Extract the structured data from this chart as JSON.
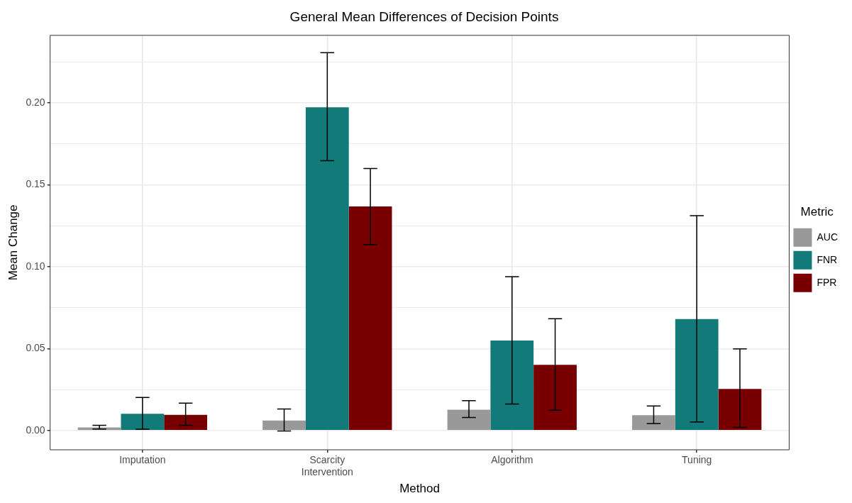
{
  "chart_data": {
    "type": "bar",
    "title": "General Mean Differences of Decision Points",
    "xlabel": "Method",
    "ylabel": "Mean Change",
    "legend_title": "Metric",
    "categories": [
      "Imputation",
      "Scarcity\nIntervention",
      "Algorithm",
      "Tuning"
    ],
    "series": [
      {
        "name": "AUC",
        "color": "#999999",
        "values": [
          0.0019,
          0.0061,
          0.0127,
          0.0093
        ],
        "errors": [
          [
            0.0009,
            0.0032
          ],
          [
            -0.0003,
            0.0131
          ],
          [
            0.0079,
            0.0182
          ],
          [
            0.0042,
            0.0149
          ]
        ]
      },
      {
        "name": "FNR",
        "color": "#127a78",
        "values": [
          0.0102,
          0.1973,
          0.0549,
          0.068
        ],
        "errors": [
          [
            0.0008,
            0.0201
          ],
          [
            0.1647,
            0.2307
          ],
          [
            0.0161,
            0.0939
          ],
          [
            0.0052,
            0.1312
          ]
        ]
      },
      {
        "name": "FPR",
        "color": "#780000",
        "values": [
          0.0095,
          0.1368,
          0.0401,
          0.0254
        ],
        "errors": [
          [
            0.0031,
            0.0167
          ],
          [
            0.1135,
            0.16
          ],
          [
            0.0124,
            0.0682
          ],
          [
            0.0018,
            0.0498
          ]
        ]
      }
    ],
    "ylim": [
      -0.0118,
      0.2413
    ],
    "yticks": [
      {
        "value": 0,
        "label": "0.00"
      },
      {
        "value": 0.025,
        "label": null
      },
      {
        "value": 0.05,
        "label": "0.05"
      },
      {
        "value": 0.075,
        "label": null
      },
      {
        "value": 0.1,
        "label": "0.10"
      },
      {
        "value": 0.125,
        "label": null
      },
      {
        "value": 0.15,
        "label": "0.15"
      },
      {
        "value": 0.175,
        "label": null
      },
      {
        "value": 0.2,
        "label": "0.20"
      },
      {
        "value": 0.225,
        "label": null
      }
    ],
    "grid": true,
    "legend": "right"
  }
}
